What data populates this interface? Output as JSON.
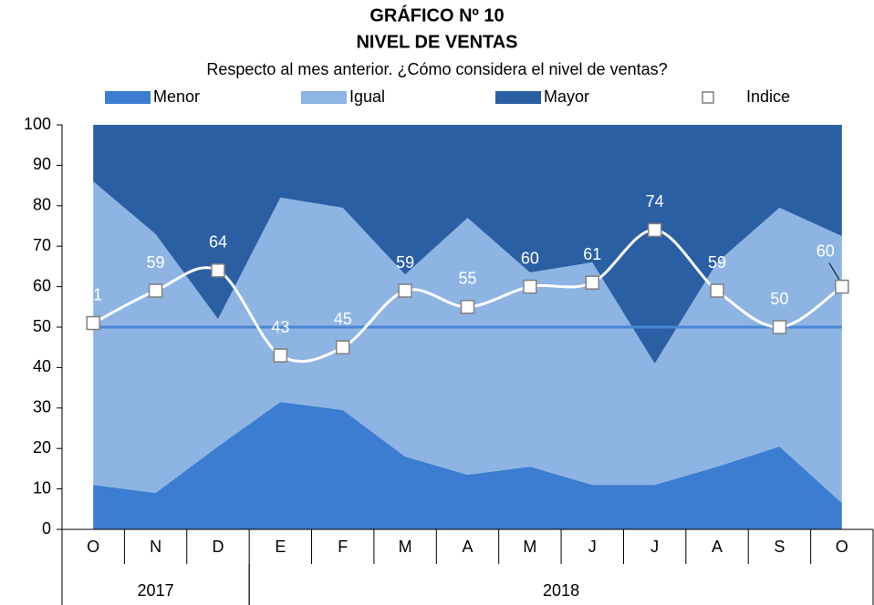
{
  "chart_data": {
    "type": "stacked_area_line",
    "title": "GRÁFICO Nº 10",
    "subtitle": "NIVEL DE VENTAS",
    "question": "Respecto al mes anterior. ¿Cómo considera el nivel de ventas?",
    "category_groups": [
      {
        "label": "2017",
        "categories": [
          "O",
          "N",
          "D"
        ]
      },
      {
        "label": "2018",
        "categories": [
          "E",
          "F",
          "M",
          "A",
          "M",
          "J",
          "J",
          "A",
          "S",
          "O"
        ]
      }
    ],
    "series": [
      {
        "name": "Menor",
        "color": "#3b7dd1",
        "kind": "area",
        "values": [
          11,
          9,
          20.5,
          31.5,
          29.5,
          18,
          13.5,
          15.5,
          11,
          11,
          15.5,
          20.5,
          6.5
        ]
      },
      {
        "name": "Igual",
        "color": "#8eb4e3",
        "kind": "area",
        "values": [
          75,
          64,
          31.5,
          50.5,
          50,
          45,
          63.5,
          48,
          55,
          30,
          50.5,
          59,
          66
        ]
      },
      {
        "name": "Mayor",
        "color": "#2b5fa4",
        "kind": "area",
        "values": [
          14,
          27,
          48,
          18,
          20.5,
          37,
          23,
          36.5,
          34,
          59,
          34,
          20.5,
          27.5
        ]
      },
      {
        "name": "Indice",
        "color": "#ffffff",
        "kind": "line",
        "values": [
          51,
          59,
          64,
          43,
          45,
          59,
          55,
          60,
          61,
          74,
          59,
          50,
          60
        ]
      }
    ],
    "reference_line": {
      "value": 50,
      "color": "#4a86d6"
    },
    "ylim": [
      0,
      100
    ],
    "yticks": [
      0,
      10,
      20,
      30,
      40,
      50,
      60,
      70,
      80,
      90,
      100
    ]
  }
}
